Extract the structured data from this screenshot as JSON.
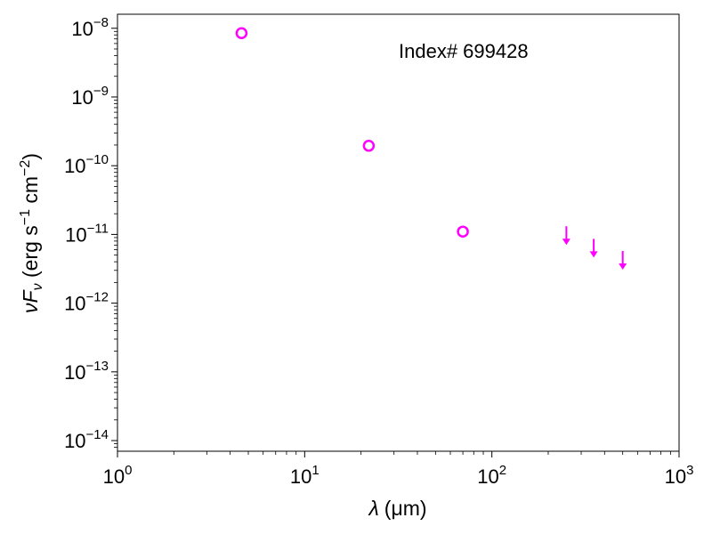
{
  "chart_data": {
    "type": "scatter",
    "title": "",
    "annotation": "Index# 699428",
    "xlabel": {
      "symbol": "λ",
      "unit": "(μm)"
    },
    "ylabel": {
      "prefix": "ν",
      "symbol": "F",
      "subscript": "ν",
      "unit_open": " (erg s",
      "exp1": "−1",
      "mid": " cm",
      "exp2": "−2",
      "unit_close": ")"
    },
    "xscale": "log",
    "yscale": "log",
    "xlim": [
      1,
      1000
    ],
    "ylim": [
      7e-15,
      1.6e-08
    ],
    "x_ticks": [
      {
        "base": "10",
        "exp": "0",
        "value": 1
      },
      {
        "base": "10",
        "exp": "1",
        "value": 10
      },
      {
        "base": "10",
        "exp": "2",
        "value": 100
      },
      {
        "base": "10",
        "exp": "3",
        "value": 1000
      }
    ],
    "y_ticks": [
      {
        "base": "10",
        "exp": "−14",
        "value": 1e-14
      },
      {
        "base": "10",
        "exp": "−13",
        "value": 1e-13
      },
      {
        "base": "10",
        "exp": "−12",
        "value": 1e-12
      },
      {
        "base": "10",
        "exp": "−11",
        "value": 1e-11
      },
      {
        "base": "10",
        "exp": "−10",
        "value": 1e-10
      },
      {
        "base": "10",
        "exp": "−9",
        "value": 1e-09
      },
      {
        "base": "10",
        "exp": "−8",
        "value": 1e-08
      }
    ],
    "color": "#ff00ff",
    "series": [
      {
        "marker": "open-circle",
        "points": [
          {
            "x": 4.6,
            "y": 8.5e-09
          },
          {
            "x": 22,
            "y": 1.95e-10
          },
          {
            "x": 70,
            "y": 1.1e-11
          }
        ]
      },
      {
        "marker": "upper-limit-arrow",
        "points": [
          {
            "x": 250,
            "y": 1.1e-11
          },
          {
            "x": 350,
            "y": 7.2e-12
          },
          {
            "x": 500,
            "y": 4.8e-12
          }
        ]
      }
    ]
  }
}
